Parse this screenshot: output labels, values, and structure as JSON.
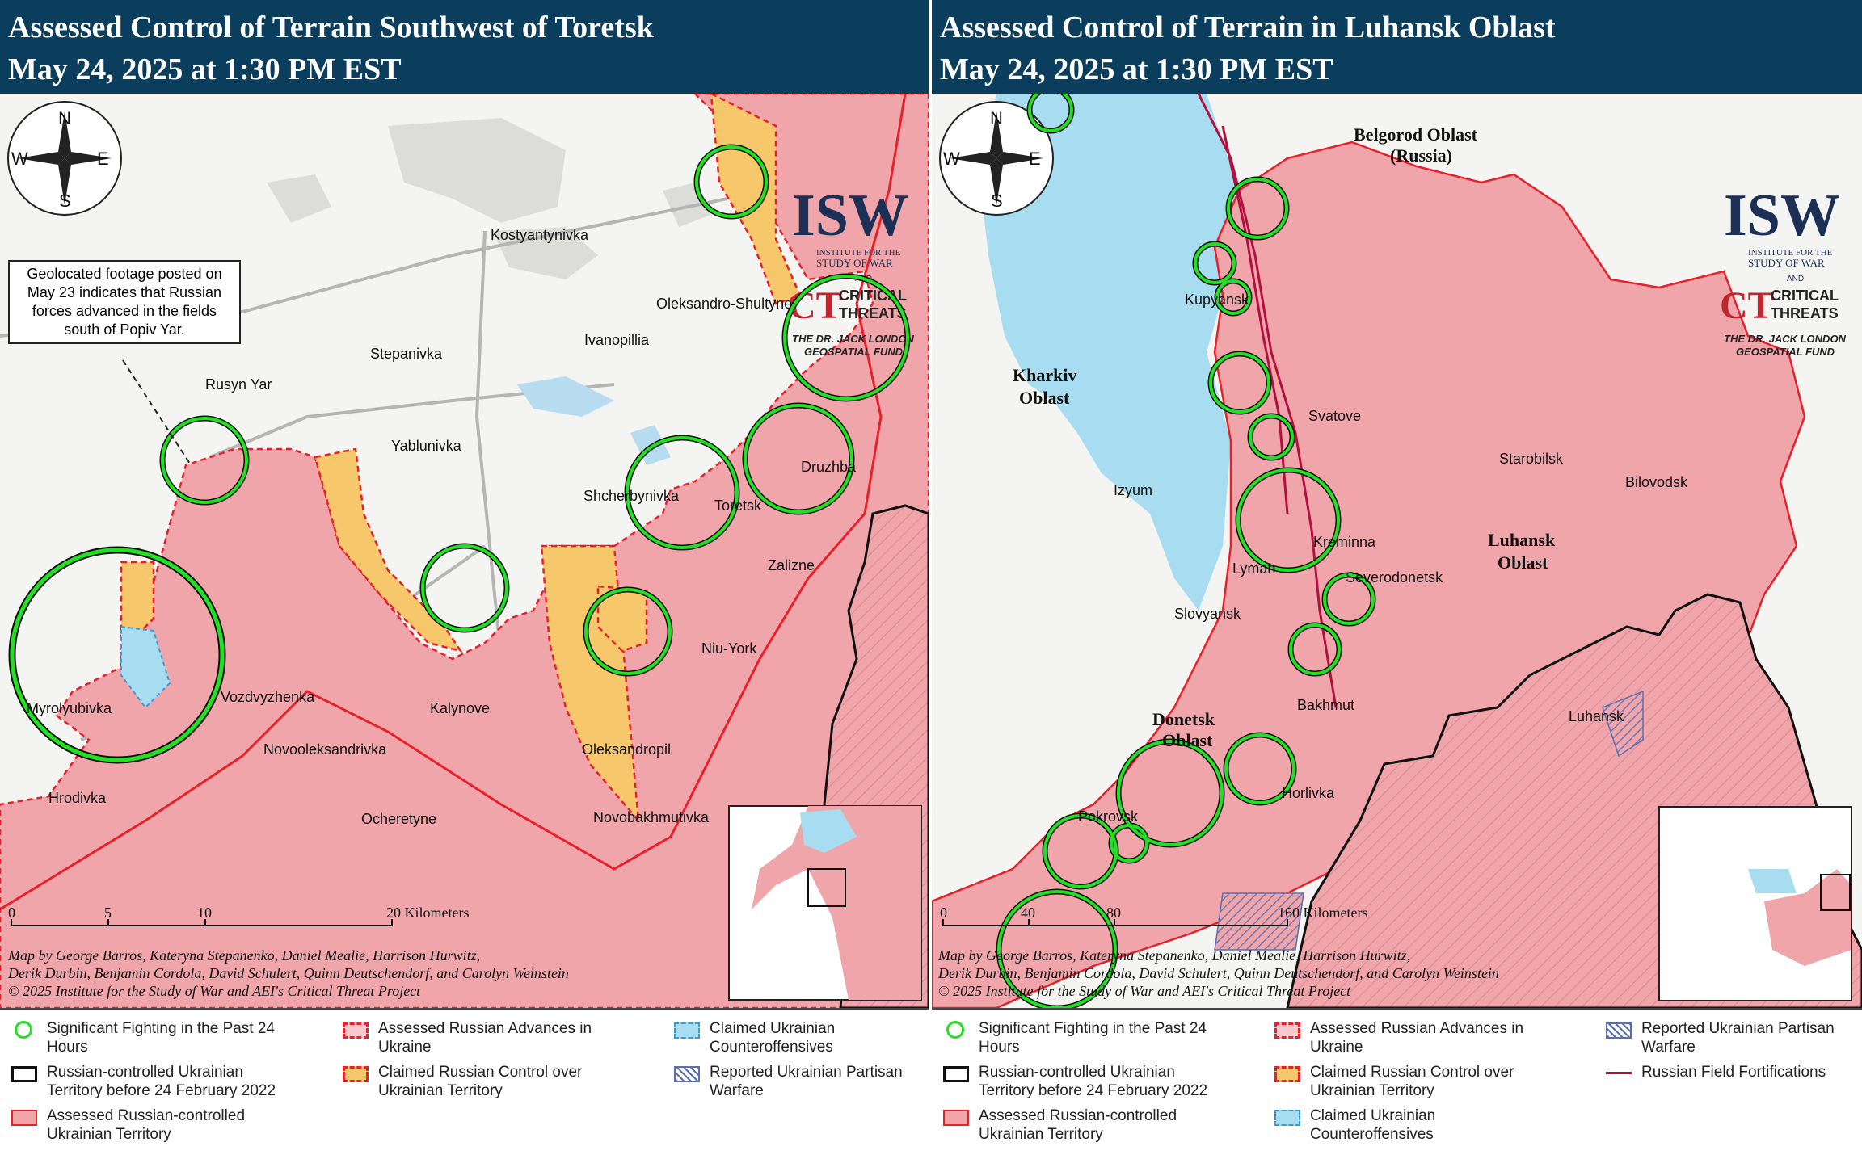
{
  "left": {
    "title_line1": "Assessed Control of Terrain Southwest of Toretsk",
    "title_line2": "May 24, 2025 at 1:30 PM EST",
    "callout": "Geolocated footage posted on May 23 indicates that Russian forces advanced in the fields south of Popiv Yar.",
    "places": {
      "kostyantynivka": "Kostyantynivka",
      "oleksandro_shultyne": "Oleksandro-Shultyne",
      "ivanopillia": "Ivanopillia",
      "stepanivka": "Stepanivka",
      "rusyn_yar": "Rusyn Yar",
      "yablunivka": "Yablunivka",
      "shcherbynivka": "Shcherbynivka",
      "toretsk": "Toretsk",
      "druzhba": "Druzhba",
      "zalizne": "Zalizne",
      "niu_york": "Niu-York",
      "vozdvyzhenka": "Vozdvyzhenka",
      "myrolyubivka": "Myrolyubivka",
      "kalynove": "Kalynove",
      "novooleksandrivka": "Novooleksandrivka",
      "oleksandropil": "Oleksandropil",
      "hrodivka": "Hrodivka",
      "ocheretyne": "Ocheretyne",
      "novobakhmutivka": "Novobakhmutivka"
    },
    "scale": [
      "0",
      "5",
      "10",
      "20 Kilometers"
    ],
    "credit_line1": "Map by George Barros, Kateryna Stepanenko, Daniel Mealie, Harrison Hurwitz,",
    "credit_line2": "Derik Durbin, Benjamin Cordola, David Schulert, Quinn Deutschendorf, and Carolyn Weinstein",
    "credit_line3": "© 2025 Institute for the Study of War and AEI's Critical Threat Project",
    "legend": {
      "fighting": "Significant Fighting in the Past 24 Hours",
      "pre2022": "Russian-controlled Ukrainian Territory before 24 February 2022",
      "russian_controlled": "Assessed Russian-controlled Ukrainian Territory",
      "advances": "Assessed Russian Advances in Ukraine",
      "claimed_control": "Claimed Russian Control over Ukrainian Territory",
      "counteroffensives": "Claimed Ukrainian Counteroffensives",
      "partisan": "Reported Ukrainian Partisan Warfare"
    }
  },
  "right": {
    "title_line1": "Assessed Control of Terrain in Luhansk Oblast",
    "title_line2": "May 24, 2025 at 1:30 PM EST",
    "places": {
      "belgorod": "Belgorod Oblast",
      "russia": "(Russia)",
      "kupyansk": "Kupyansk",
      "kharkiv1": "Kharkiv",
      "kharkiv2": "Oblast",
      "svatove": "Svatove",
      "starobilsk": "Starobilsk",
      "bilovodsk": "Bilovodsk",
      "izyum": "Izyum",
      "kreminna": "Kreminna",
      "luhansk_oblast1": "Luhansk",
      "luhansk_oblast2": "Oblast",
      "lyman": "Lyman",
      "severodonetsk": "Severodonetsk",
      "slovyansk": "Slovyansk",
      "bakhmut": "Bakhmut",
      "donetsk1": "Donetsk",
      "donetsk2": "Oblast",
      "luhansk": "Luhansk",
      "horlivka": "Horlivka",
      "pokrovsk": "Pokrovsk"
    },
    "scale": [
      "0",
      "40",
      "80",
      "160 Kilometers"
    ],
    "credit_line1": "Map by George Barros, Kateryna Stepanenko, Daniel Mealie, Harrison Hurwitz,",
    "credit_line2": "Derik Durbin, Benjamin Cordola, David Schulert, Quinn Deutschendorf, and Carolyn Weinstein",
    "credit_line3": "© 2025 Institute for the Study of War and AEI's Critical Threat Project",
    "legend": {
      "fighting": "Significant Fighting in the Past 24 Hours",
      "pre2022": "Russian-controlled Ukrainian Territory before 24 February 2022",
      "russian_controlled": "Assessed Russian-controlled Ukrainian Territory",
      "advances": "Assessed Russian Advances in Ukraine",
      "claimed_control": "Claimed Russian Control over Ukrainian Territory",
      "counteroffensives": "Claimed Ukrainian Counteroffensives",
      "partisan": "Reported Ukrainian Partisan Warfare",
      "fortifications": "Russian Field Fortifications"
    }
  },
  "compass": {
    "n": "N",
    "e": "E",
    "s": "S",
    "w": "W"
  },
  "logo": {
    "isw": "ISW",
    "isw_sub1": "INSTITUTE FOR THE",
    "isw_sub2": "STUDY OF WAR",
    "and": "AND",
    "ct": "CT",
    "ct_sub1": "CRITICAL",
    "ct_sub2": "THREATS",
    "fund1": "THE DR. JACK LONDON",
    "fund2": "GEOSPATIAL FUND"
  },
  "colors": {
    "header": "#0b3d5c",
    "russian": "#f0a5ab",
    "russian_line": "#e8202a",
    "claimed": "#f7c86b",
    "ukr_counter": "#a8dcf0",
    "fighting_ring": "#22e022",
    "fortification": "#b3103e"
  }
}
